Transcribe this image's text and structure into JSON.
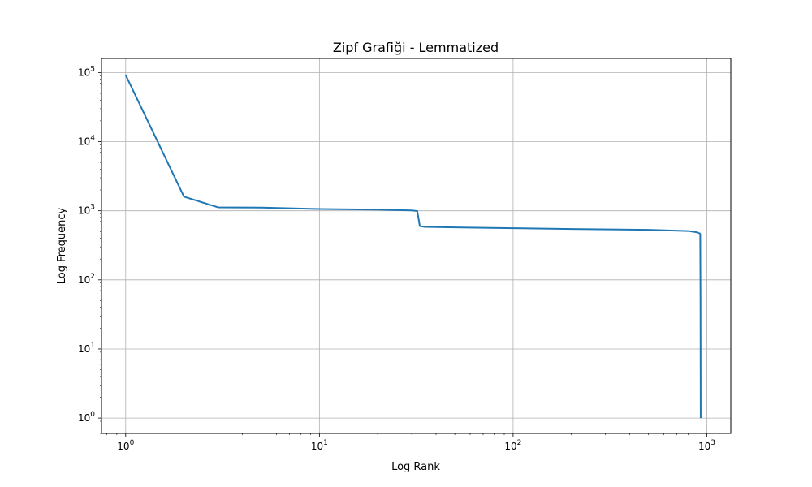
{
  "chart_data": {
    "type": "line",
    "title": "Zipf Grafiği - Lemmatized",
    "xlabel": "Log Rank",
    "ylabel": "Log Frequency",
    "x_scale": "log",
    "y_scale": "log",
    "xlim": [
      0.75,
      1330
    ],
    "ylim": [
      0.6,
      160000
    ],
    "grid": true,
    "line_color": "#1f77b4",
    "x_ticks": [
      {
        "value": 1,
        "base": "10",
        "exp": "0"
      },
      {
        "value": 10,
        "base": "10",
        "exp": "1"
      },
      {
        "value": 100,
        "base": "10",
        "exp": "2"
      },
      {
        "value": 1000,
        "base": "10",
        "exp": "3"
      }
    ],
    "y_ticks": [
      {
        "value": 1,
        "base": "10",
        "exp": "0"
      },
      {
        "value": 10,
        "base": "10",
        "exp": "1"
      },
      {
        "value": 100,
        "base": "10",
        "exp": "2"
      },
      {
        "value": 1000,
        "base": "10",
        "exp": "3"
      },
      {
        "value": 10000,
        "base": "10",
        "exp": "4"
      },
      {
        "value": 100000,
        "base": "10",
        "exp": "5"
      }
    ],
    "series": [
      {
        "x": [
          1,
          2,
          3,
          5,
          10,
          20,
          30,
          32,
          33,
          35,
          50,
          100,
          200,
          500,
          800,
          880,
          920,
          925,
          928,
          930
        ],
        "y": [
          92000,
          1600,
          1120,
          1110,
          1060,
          1040,
          1010,
          990,
          600,
          585,
          575,
          560,
          545,
          530,
          510,
          490,
          470,
          460,
          50,
          1
        ]
      }
    ]
  }
}
